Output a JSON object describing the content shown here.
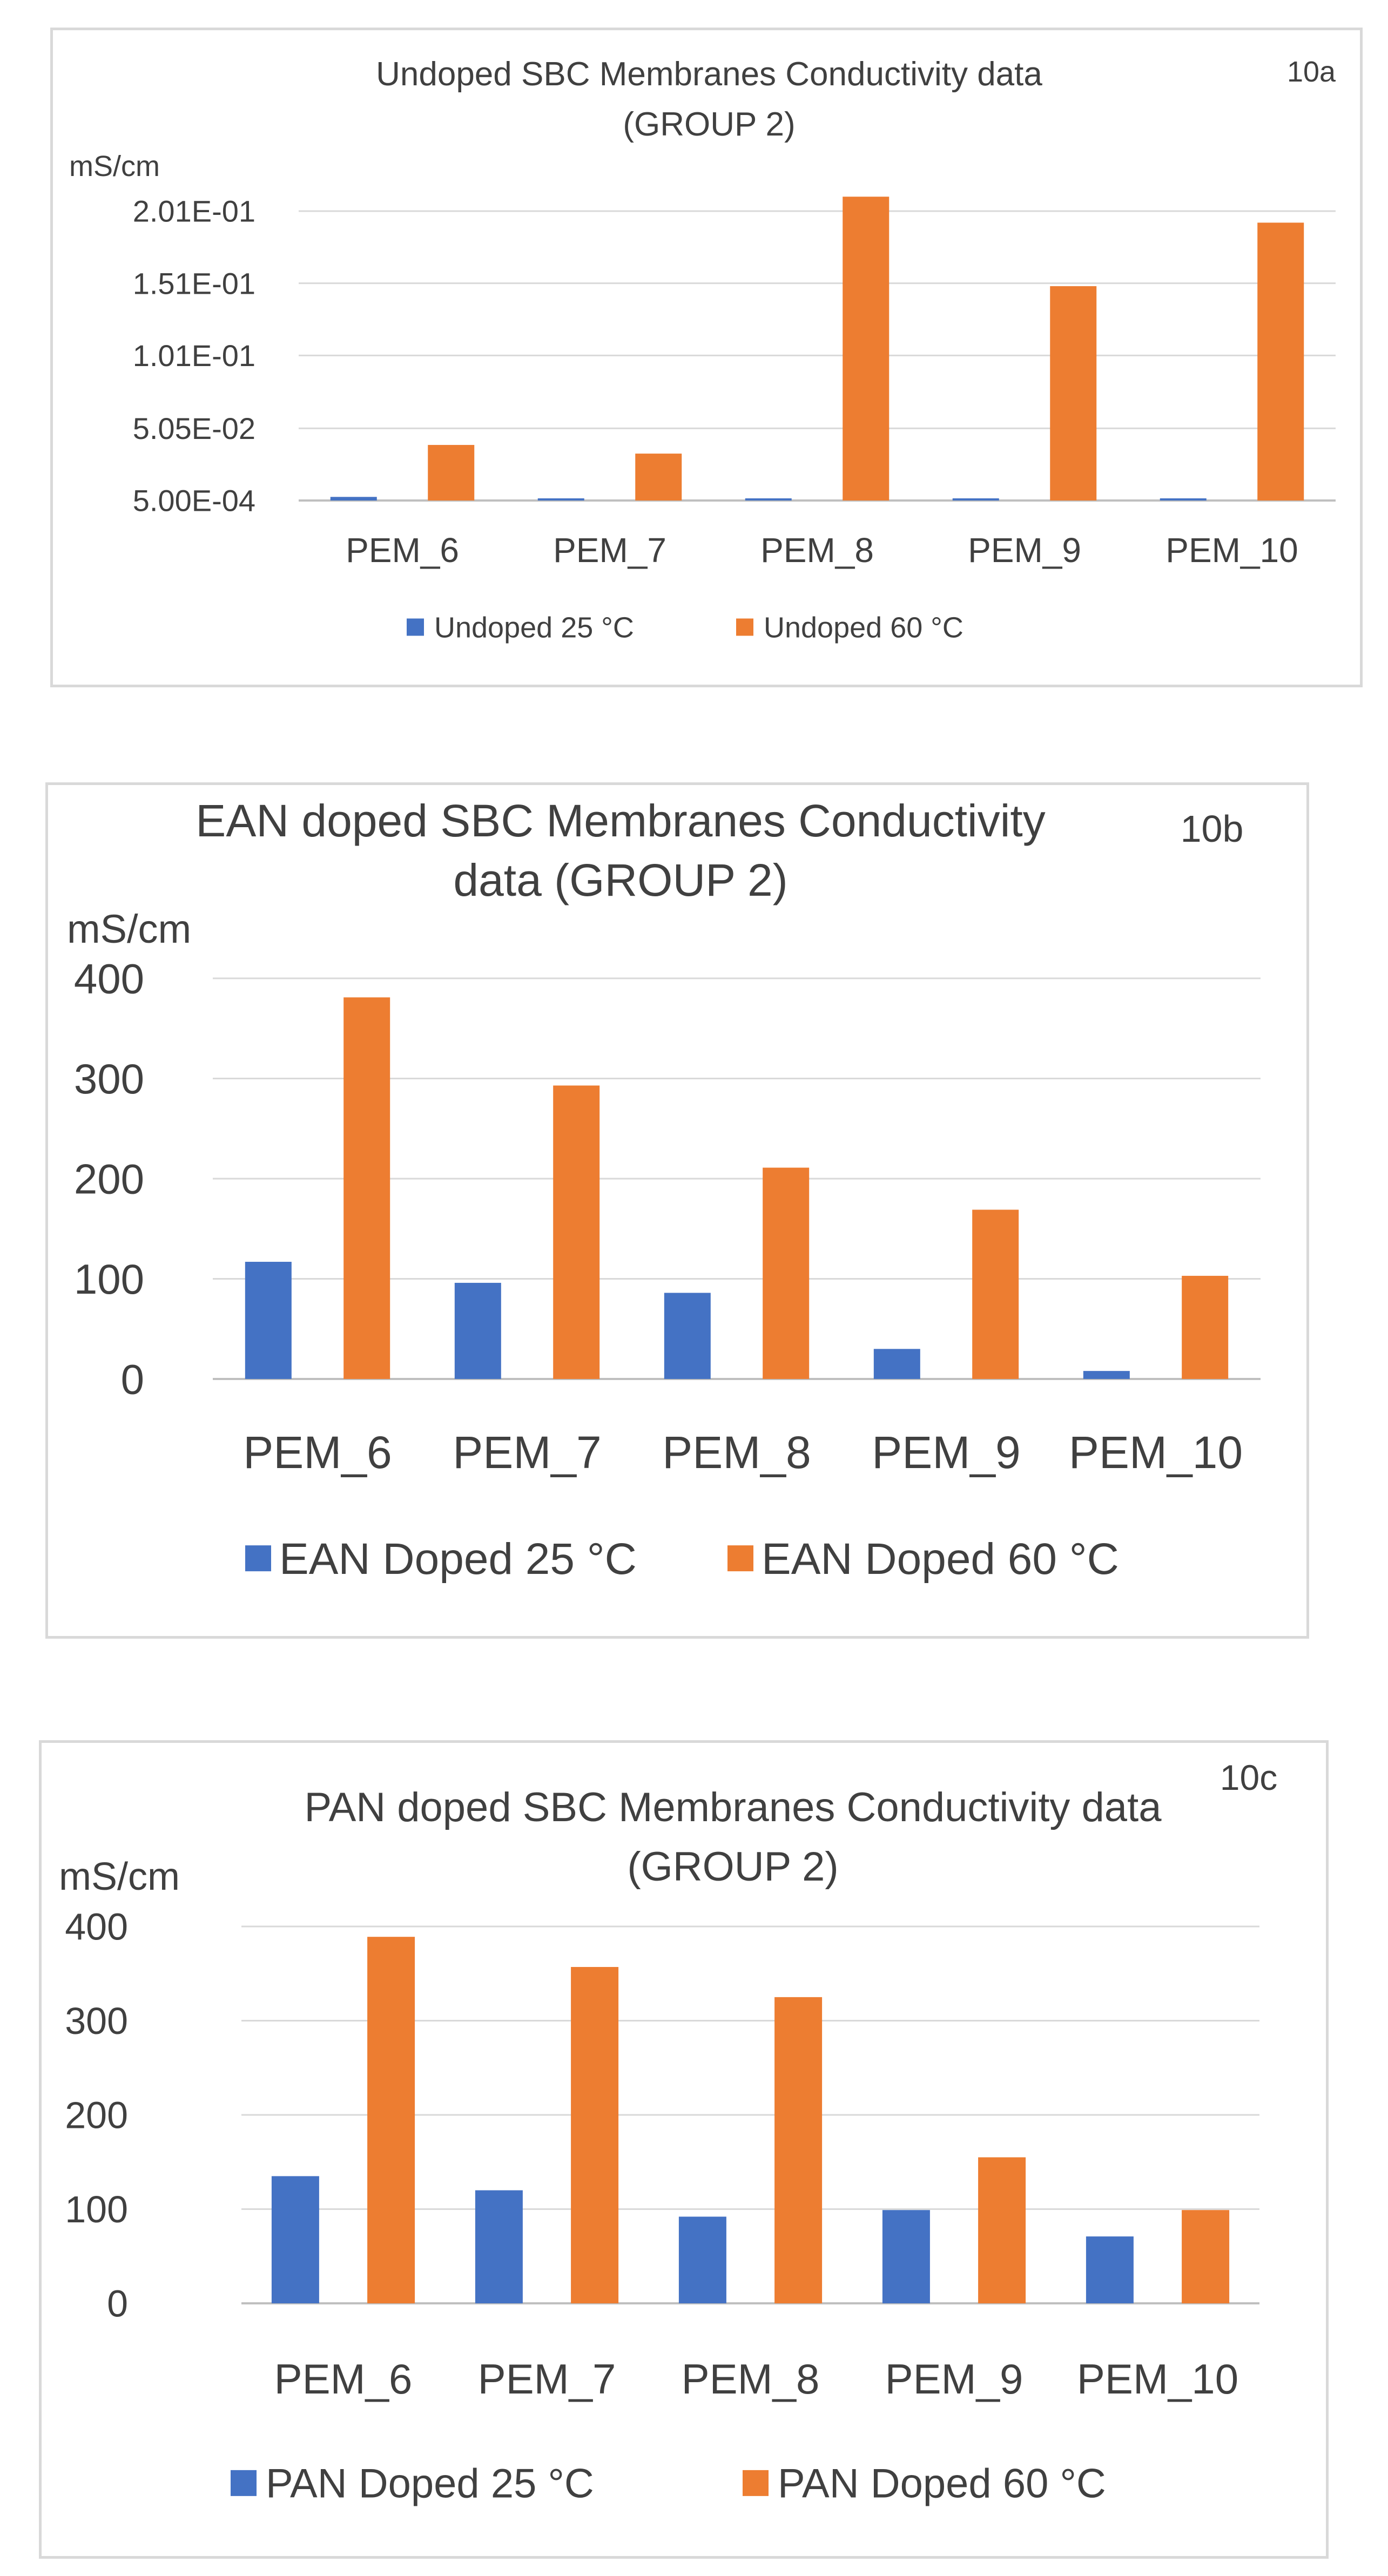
{
  "chart_data": [
    {
      "type": "bar",
      "panel_label": "10a",
      "title_lines": [
        "Undoped SBC Membranes Conductivity data",
        "(GROUP 2)"
      ],
      "ylabel": "mS/cm",
      "xlabel": "",
      "categories": [
        "PEM_6",
        "PEM_7",
        "PEM_8",
        "PEM_9",
        "PEM_10"
      ],
      "ylim": [
        0.0005,
        0.201
      ],
      "yticks": [
        0.0005,
        0.0505,
        0.101,
        0.151,
        0.201
      ],
      "ytick_labels": [
        "5.00E-04",
        "5.05E-02",
        "1.01E-01",
        "1.51E-01",
        "2.01E-01"
      ],
      "series": [
        {
          "name": "Undoped 25  °C",
          "color": "#4472c4",
          "values": [
            0.003,
            0.002,
            0.002,
            0.002,
            0.002
          ]
        },
        {
          "name": "Undoped 60  °C",
          "color": "#ed7d31",
          "values": [
            0.039,
            0.033,
            0.211,
            0.149,
            0.193
          ]
        }
      ],
      "legend": "bottom",
      "grid": true
    },
    {
      "type": "bar",
      "panel_label": "10b",
      "title_lines": [
        "EAN doped SBC Membranes Conductivity",
        "data (GROUP 2)"
      ],
      "ylabel": "mS/cm",
      "xlabel": "",
      "categories": [
        "PEM_6",
        "PEM_7",
        "PEM_8",
        "PEM_9",
        "PEM_10"
      ],
      "ylim": [
        0,
        400
      ],
      "yticks": [
        0,
        100,
        200,
        300,
        400
      ],
      "ytick_labels": [
        "0",
        "100",
        "200",
        "300",
        "400"
      ],
      "series": [
        {
          "name": "EAN Doped 25  °C",
          "color": "#4472c4",
          "values": [
            117,
            96,
            86,
            30,
            8
          ]
        },
        {
          "name": "EAN Doped 60  °C",
          "color": "#ed7d31",
          "values": [
            381,
            293,
            211,
            169,
            103
          ]
        }
      ],
      "legend": "bottom",
      "grid": true
    },
    {
      "type": "bar",
      "panel_label": "10c",
      "title_lines": [
        "PAN doped SBC Membranes Conductivity data",
        "(GROUP 2)"
      ],
      "ylabel": "mS/cm",
      "xlabel": "",
      "categories": [
        "PEM_6",
        "PEM_7",
        "PEM_8",
        "PEM_9",
        "PEM_10"
      ],
      "ylim": [
        0,
        400
      ],
      "yticks": [
        0,
        100,
        200,
        300,
        400
      ],
      "ytick_labels": [
        "0",
        "100",
        "200",
        "300",
        "400"
      ],
      "series": [
        {
          "name": "PAN Doped 25 °C",
          "color": "#4472c4",
          "values": [
            135,
            120,
            92,
            99,
            71
          ]
        },
        {
          "name": "PAN Doped 60 °C",
          "color": "#ed7d31",
          "values": [
            389,
            357,
            325,
            155,
            99
          ]
        }
      ],
      "legend": "bottom",
      "grid": true
    }
  ]
}
